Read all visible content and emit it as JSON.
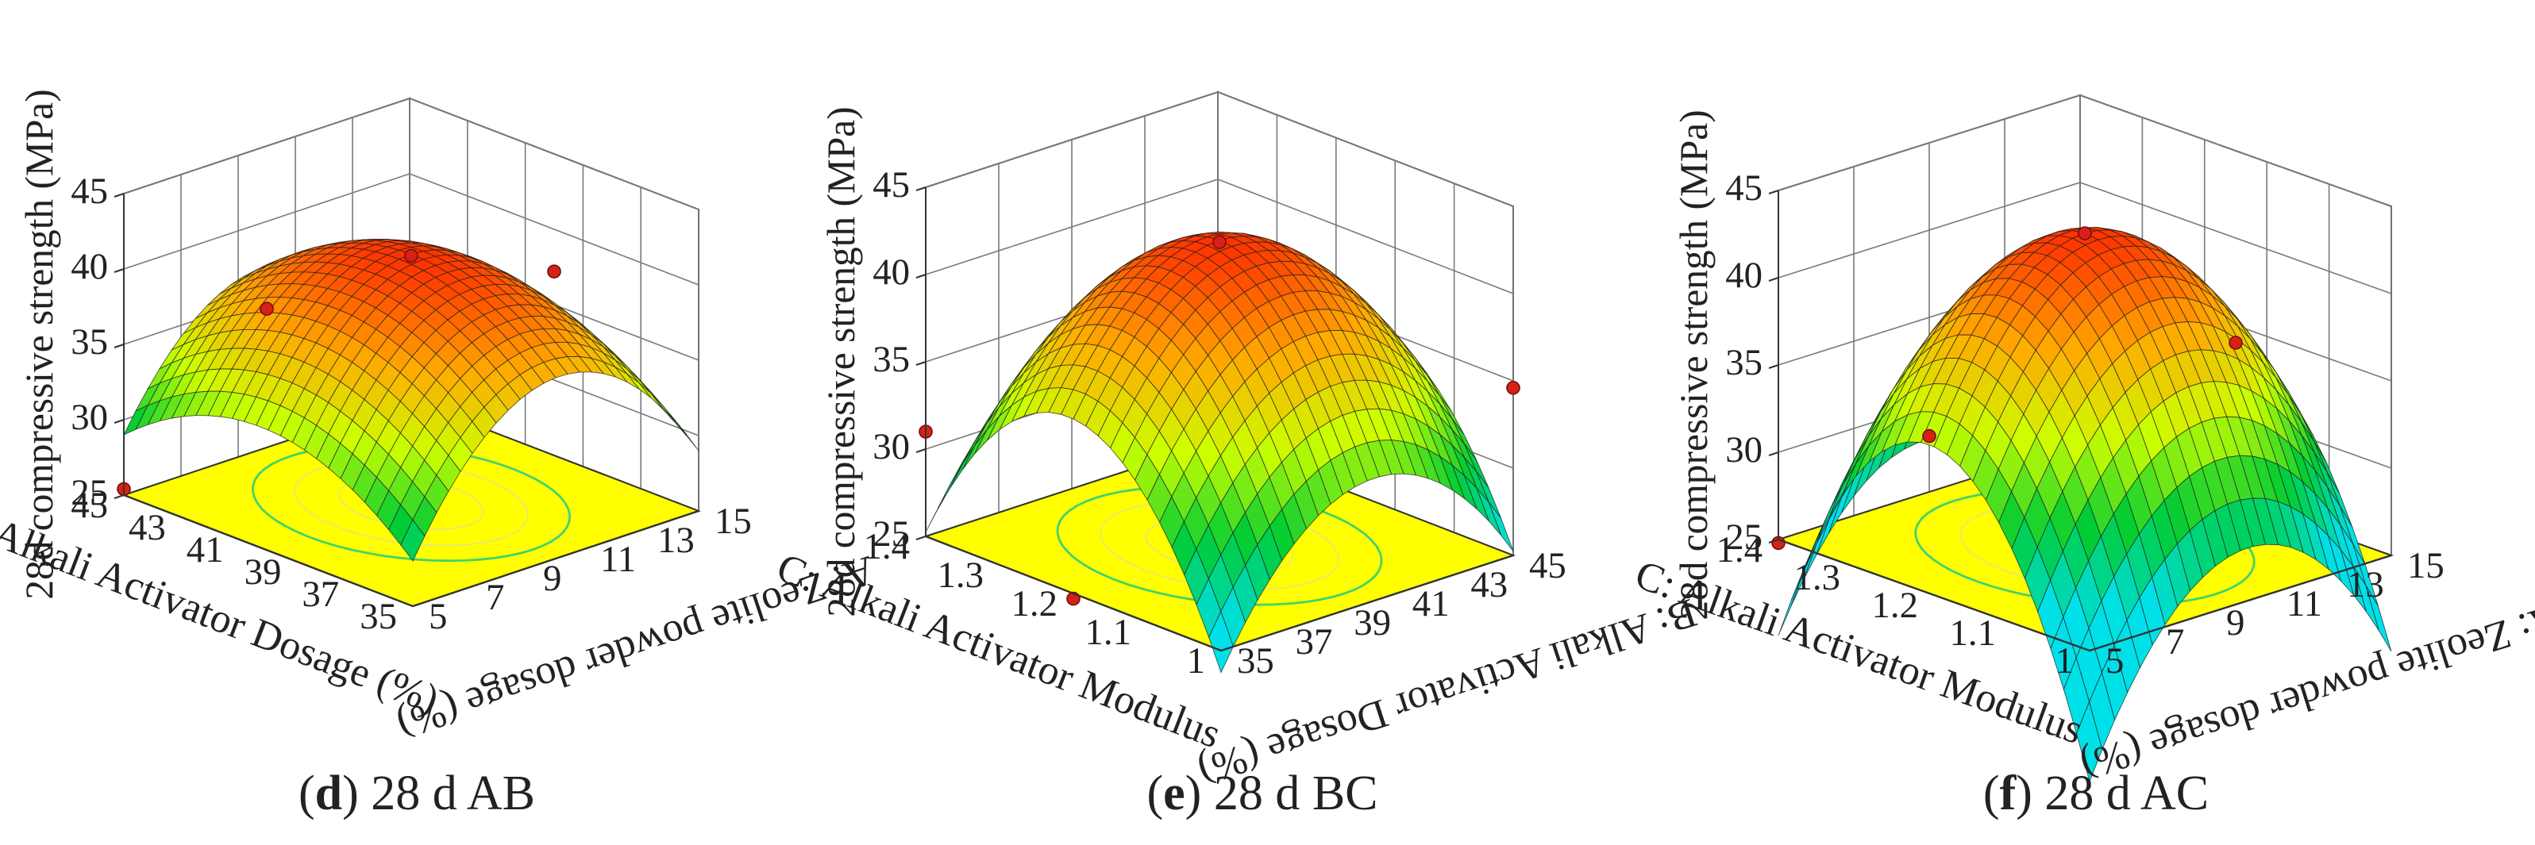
{
  "chart_data": [
    {
      "type": "surface3d",
      "caption": {
        "letter": "d",
        "text": " 28 d AB"
      },
      "zlabel": "28d compressive strength (MPa)",
      "zlim": [
        25,
        45
      ],
      "zticks": [
        "25",
        "30",
        "35",
        "40",
        "45"
      ],
      "x_axis": {
        "label": "A:  Zeolite powder dosage (%)",
        "range": [
          5,
          15
        ],
        "ticks": [
          "5",
          "7",
          "9",
          "11",
          "13",
          "15"
        ]
      },
      "y_axis": {
        "label": "B:  Alkali Activator Dosage (%)",
        "range": [
          35,
          45
        ],
        "ticks": [
          "35",
          "37",
          "39",
          "41",
          "43",
          "45"
        ]
      },
      "model": {
        "center": 41.5,
        "peak": [
          0.5,
          0.5
        ],
        "cx": 0.61,
        "cy": 0.53,
        "cxy": 0.06,
        "sx": 18,
        "sy": 34,
        "sxy": 2
      },
      "design_points": [
        {
          "x": 10,
          "y": 40,
          "z": 41.4
        },
        {
          "x": 10,
          "y": 45,
          "z": 37.2
        },
        {
          "x": 15,
          "y": 40,
          "z": 34.2
        },
        {
          "x": 15,
          "y": 35,
          "z": 25.4
        }
      ]
    },
    {
      "type": "surface3d",
      "caption": {
        "letter": "e",
        "text": " 28 d BC"
      },
      "zlabel": "28d compressive strength (MPa)",
      "zlim": [
        25,
        45
      ],
      "zticks": [
        "25",
        "30",
        "35",
        "40",
        "45"
      ],
      "x_axis": {
        "label": "B:  Alkali Activator Dosage (%)",
        "range": [
          35,
          45
        ],
        "ticks": [
          "35",
          "37",
          "39",
          "41",
          "43",
          "45"
        ]
      },
      "y_axis": {
        "label": "C:  Alkali Activator Modulus",
        "range": [
          1,
          1.4
        ],
        "ticks": [
          "1",
          "1.1",
          "1.2",
          "1.3",
          "1.4"
        ]
      },
      "model": {
        "center": 42.5,
        "peak": [
          0.5,
          0.5
        ],
        "cx": 0.57,
        "cy": 0.49,
        "cxy": 0.06,
        "sx": 42,
        "sy": 30,
        "sxy": 3
      },
      "design_points": [
        {
          "x": 40,
          "y": 1.2,
          "z": 42.4
        },
        {
          "x": 35,
          "y": 1.4,
          "z": 34.6
        },
        {
          "x": 45,
          "y": 1.0,
          "z": 31.0
        },
        {
          "x": 40,
          "y": 1.0,
          "z": 24.7
        }
      ]
    },
    {
      "type": "surface3d",
      "caption": {
        "letter": "f",
        "text": " 28 d AC"
      },
      "zlabel": "28d compressive strength (MPa)",
      "zlim": [
        25,
        45
      ],
      "zticks": [
        "25",
        "30",
        "35",
        "40",
        "45"
      ],
      "x_axis": {
        "label": "A:  Zeolite powder dosage (%)",
        "range": [
          5,
          15
        ],
        "ticks": [
          "5",
          "7",
          "9",
          "11",
          "13",
          "15"
        ]
      },
      "y_axis": {
        "label": "C:  Alkali Activator Modulus",
        "range": [
          1,
          1.4
        ],
        "ticks": [
          "1",
          "1.1",
          "1.2",
          "1.3",
          "1.4"
        ]
      },
      "model": {
        "center": 43.0,
        "peak": [
          0.5,
          0.5
        ],
        "cx": 0.56,
        "cy": 0.55,
        "cxy": 0.06,
        "sx": 60,
        "sy": 38,
        "sxy": 4
      },
      "design_points": [
        {
          "x": 10,
          "y": 1.2,
          "z": 43.0
        },
        {
          "x": 10,
          "y": 1.4,
          "z": 34.0
        },
        {
          "x": 15,
          "y": 1.2,
          "z": 28.2
        },
        {
          "x": 15,
          "y": 1.0,
          "z": 24.8
        }
      ]
    }
  ],
  "colors": {
    "floor": "#ffff00",
    "floor_contour": "#3fd46a",
    "mesh": "#1f1f1f",
    "gridline": "#7a7a7a",
    "point_fill": "#d52218",
    "point_stroke": "#7a0d08",
    "surface_stops": [
      "#00e0e8",
      "#00cc33",
      "#ccff00",
      "#ffaa00",
      "#ff3300"
    ]
  }
}
